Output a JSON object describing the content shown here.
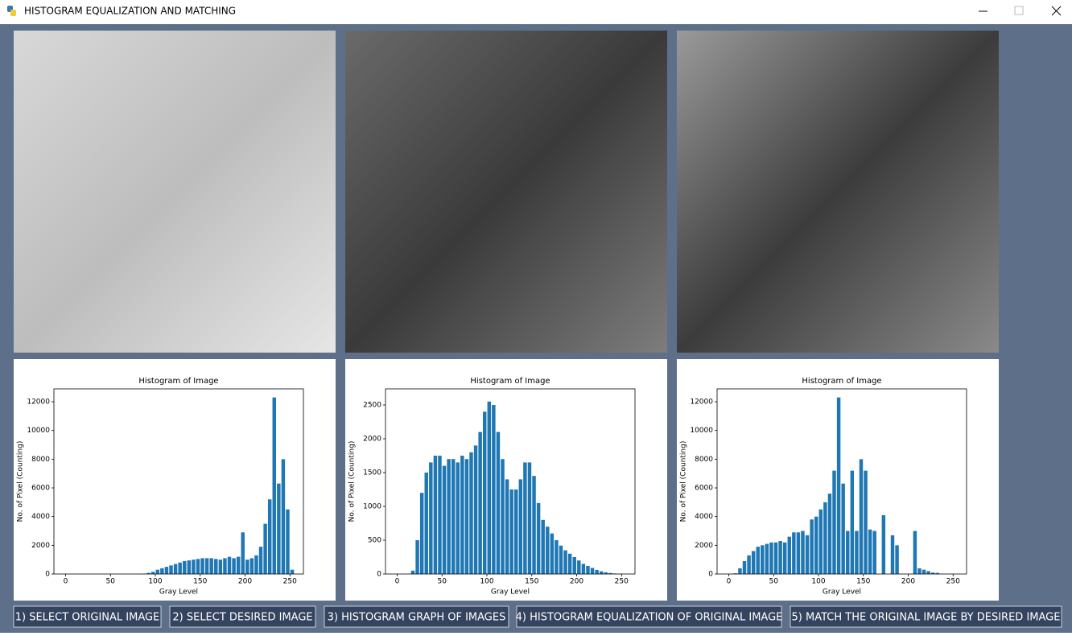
{
  "window": {
    "title": "HISTOGRAM EQUALIZATION AND MATCHING"
  },
  "chart_data": [
    {
      "type": "histogram",
      "title": "Histogram of Image",
      "x_label": "Gray Level",
      "y_label": "No. of Pixel (Counting)",
      "color": "#1f77b4",
      "bins": [
        0,
        5,
        10,
        15,
        20,
        25,
        30,
        35,
        40,
        45,
        50,
        55,
        60,
        65,
        70,
        75,
        80,
        85,
        90,
        95,
        100,
        105,
        110,
        115,
        120,
        125,
        130,
        135,
        140,
        145,
        150,
        155,
        160,
        165,
        170,
        175,
        180,
        185,
        190,
        195,
        200,
        205,
        210,
        215,
        220,
        225,
        230,
        235,
        240,
        245,
        250,
        255
      ],
      "values": [
        0,
        0,
        0,
        0,
        0,
        0,
        0,
        0,
        0,
        0,
        0,
        0,
        0,
        0,
        0,
        0,
        0,
        20,
        80,
        150,
        300,
        400,
        500,
        600,
        700,
        800,
        900,
        950,
        1000,
        1050,
        1100,
        1100,
        1100,
        1050,
        1000,
        1100,
        1200,
        1100,
        1200,
        2900,
        1000,
        1100,
        1300,
        1900,
        3500,
        5200,
        12300,
        6300,
        8000,
        4500,
        300
      ],
      "xlim": [
        -13,
        265
      ],
      "ylim": [
        0,
        12900
      ],
      "xticks": [
        0,
        50,
        100,
        150,
        200,
        250
      ],
      "yticks": [
        0,
        2000,
        4000,
        6000,
        8000,
        10000,
        12000
      ]
    },
    {
      "type": "histogram",
      "title": "Histogram of Image",
      "x_label": "Gray Level",
      "y_label": "No. of Pixel (Counting)",
      "color": "#1f77b4",
      "bins": [
        0,
        5,
        10,
        15,
        20,
        25,
        30,
        35,
        40,
        45,
        50,
        55,
        60,
        65,
        70,
        75,
        80,
        85,
        90,
        95,
        100,
        105,
        110,
        115,
        120,
        125,
        130,
        135,
        140,
        145,
        150,
        155,
        160,
        165,
        170,
        175,
        180,
        185,
        190,
        195,
        200,
        205,
        210,
        215,
        220,
        225,
        230,
        235,
        240,
        245,
        250,
        255
      ],
      "values": [
        0,
        0,
        0,
        50,
        500,
        1200,
        1500,
        1650,
        1750,
        1750,
        1600,
        1700,
        1700,
        1650,
        1750,
        1700,
        1800,
        1900,
        2100,
        2400,
        2550,
        2500,
        2100,
        1700,
        1400,
        1250,
        1250,
        1400,
        1650,
        1650,
        1450,
        1050,
        800,
        700,
        600,
        500,
        420,
        350,
        300,
        250,
        200,
        150,
        120,
        90,
        60,
        40,
        25,
        15,
        8,
        4,
        2
      ],
      "xlim": [
        -13,
        265
      ],
      "ylim": [
        0,
        2738
      ],
      "xticks": [
        0,
        50,
        100,
        150,
        200,
        250
      ],
      "yticks": [
        0,
        500,
        1000,
        1500,
        2000,
        2500
      ]
    },
    {
      "type": "histogram",
      "title": "Histogram of Image",
      "x_label": "Gray Level",
      "y_label": "No. of Pixel (Counting)",
      "color": "#1f77b4",
      "bins": [
        0,
        5,
        10,
        15,
        20,
        25,
        30,
        35,
        40,
        45,
        50,
        55,
        60,
        65,
        70,
        75,
        80,
        85,
        90,
        95,
        100,
        105,
        110,
        115,
        120,
        125,
        130,
        135,
        140,
        145,
        150,
        155,
        160,
        165,
        170,
        175,
        180,
        185,
        190,
        195,
        200,
        205,
        210,
        215,
        220,
        225,
        230,
        235,
        240,
        245,
        250,
        255
      ],
      "values": [
        0,
        50,
        400,
        900,
        1300,
        1600,
        1900,
        2000,
        2100,
        2200,
        2200,
        2300,
        2200,
        2600,
        2900,
        2900,
        3000,
        2700,
        3800,
        4000,
        4500,
        5000,
        5600,
        7200,
        12300,
        6300,
        3000,
        7200,
        3000,
        8000,
        7200,
        3100,
        3000,
        0,
        4100,
        0,
        2700,
        2000,
        0,
        0,
        0,
        3000,
        400,
        300,
        200,
        100,
        80,
        0,
        0,
        0,
        0
      ],
      "xlim": [
        -13,
        265
      ],
      "ylim": [
        0,
        12900
      ],
      "xticks": [
        0,
        50,
        100,
        150,
        200,
        250
      ],
      "yticks": [
        0,
        2000,
        4000,
        6000,
        8000,
        10000,
        12000
      ]
    }
  ],
  "buttons": [
    "1) SELECT ORIGINAL IMAGE",
    "2) SELECT DESIRED IMAGE",
    "3) HISTOGRAM GRAPH OF IMAGES",
    "4) HISTOGRAM EQUALIZATION OF ORIGINAL IMAGE",
    "5) MATCH THE ORIGINAL IMAGE BY DESIRED IMAGE"
  ]
}
